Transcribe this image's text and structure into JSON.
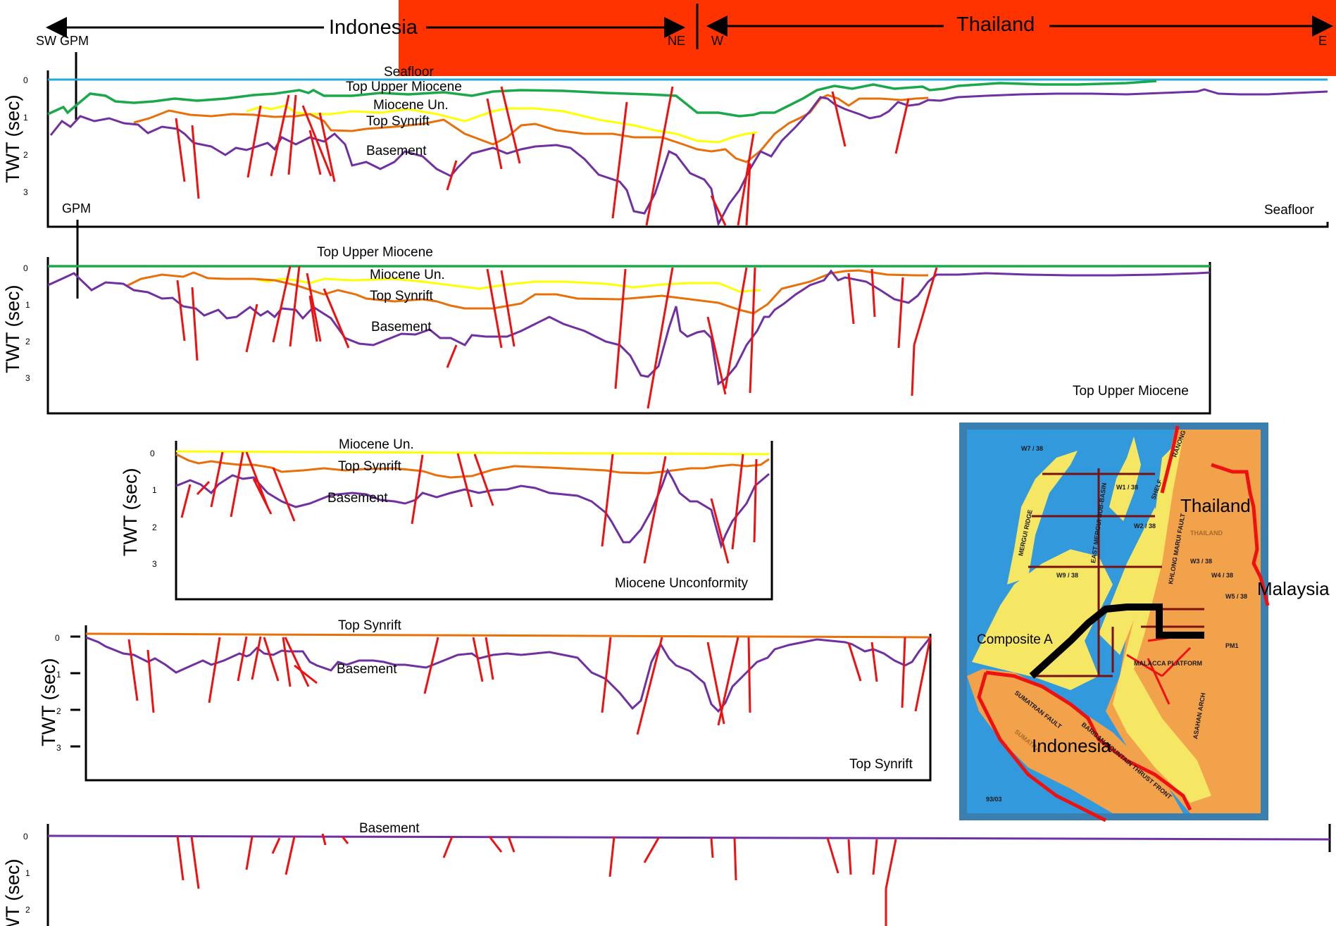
{
  "header": {
    "left_country": "Indonesia",
    "right_country": "Thailand",
    "left_end": "SW GPM",
    "mid_left": "NE",
    "mid_right": "W",
    "right_end": "E"
  },
  "panels": [
    {
      "caption": "Seafloor",
      "gpm": "GPM",
      "ticks": [
        "0",
        "1",
        "2",
        "3"
      ],
      "ylabel": "TWT (sec)",
      "horizons": [
        "Seafloor",
        "Top Upper Miocene",
        "Miocene Un.",
        "Top Synrift",
        "Basement"
      ]
    },
    {
      "caption": "Top Upper Miocene",
      "ticks": [
        "0",
        "1",
        "2",
        "3"
      ],
      "ylabel": "TWT (sec)",
      "horizons": [
        "Top Upper Miocene",
        "Miocene Un.",
        "Top Synrift",
        "Basement"
      ]
    },
    {
      "caption": "Miocene Unconformity",
      "ticks": [
        "0",
        "1",
        "2",
        "3"
      ],
      "ylabel": "TWT (sec)",
      "horizons": [
        "Miocene Un.",
        "Top Synrift",
        "Basement"
      ]
    },
    {
      "caption": "Top Synrift",
      "ticks": [
        "0",
        "1",
        "2",
        "3"
      ],
      "ylabel": "TWT (sec)",
      "horizons": [
        "Top Synrift",
        "Basement"
      ]
    },
    {
      "caption": "",
      "ticks": [
        "0",
        "1",
        "2"
      ],
      "ylabel": "TWT (sec)",
      "horizons": [
        "Basement"
      ]
    }
  ],
  "map": {
    "labels": {
      "thailand": "Thailand",
      "malaysia": "Malaysia",
      "indonesia": "Indonesia",
      "composite": "Composite A"
    },
    "small_text": [
      "MERGUI RIDGE",
      "EAST MERGUI SUB-BASIN",
      "MALACCA PLATFORM",
      "SUMATRAN FAULT",
      "BARISAN MOUNTAIN THRUST FRONT",
      "ASAHAN ARCH",
      "THAILAND",
      "SUMATRA",
      "KHLONG MARUI FAULT",
      "SHELF",
      "RANONG",
      "W1 / 38",
      "W2 / 38",
      "W3 / 38",
      "W4 / 38",
      "W5 / 38",
      "W7 / 38",
      "W9 / 38",
      "PM1",
      "93/03"
    ]
  },
  "colors": {
    "banner": "#ff3300",
    "seafloor": "#22aadd",
    "top_upper_miocene": "#1aa84a",
    "miocene_un": "#ffff00",
    "top_synrift": "#e8700a",
    "basement": "#7030a0",
    "fault": "#ee1111",
    "map_sea": "#3399dd",
    "map_land": "#f2a24a",
    "map_shelf": "#f5e663"
  }
}
